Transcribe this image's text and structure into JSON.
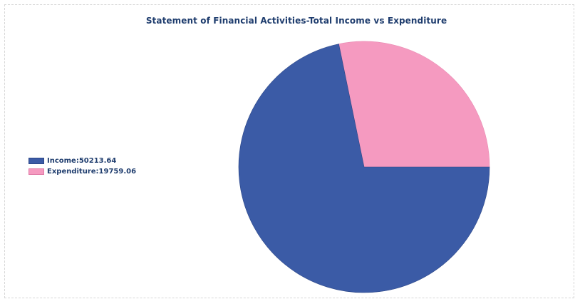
{
  "chart_data": {
    "type": "pie",
    "title": "Statement of Financial Activities-Total Income vs Expenditure",
    "slices": [
      {
        "name": "Income",
        "value": 50213.64,
        "label": "Income:50213.64",
        "color": "#3b5ba6"
      },
      {
        "name": "Expenditure",
        "value": 19759.06,
        "label": "Expenditure:19759.06",
        "color": "#f59ac0"
      }
    ],
    "legend_position": "left"
  }
}
